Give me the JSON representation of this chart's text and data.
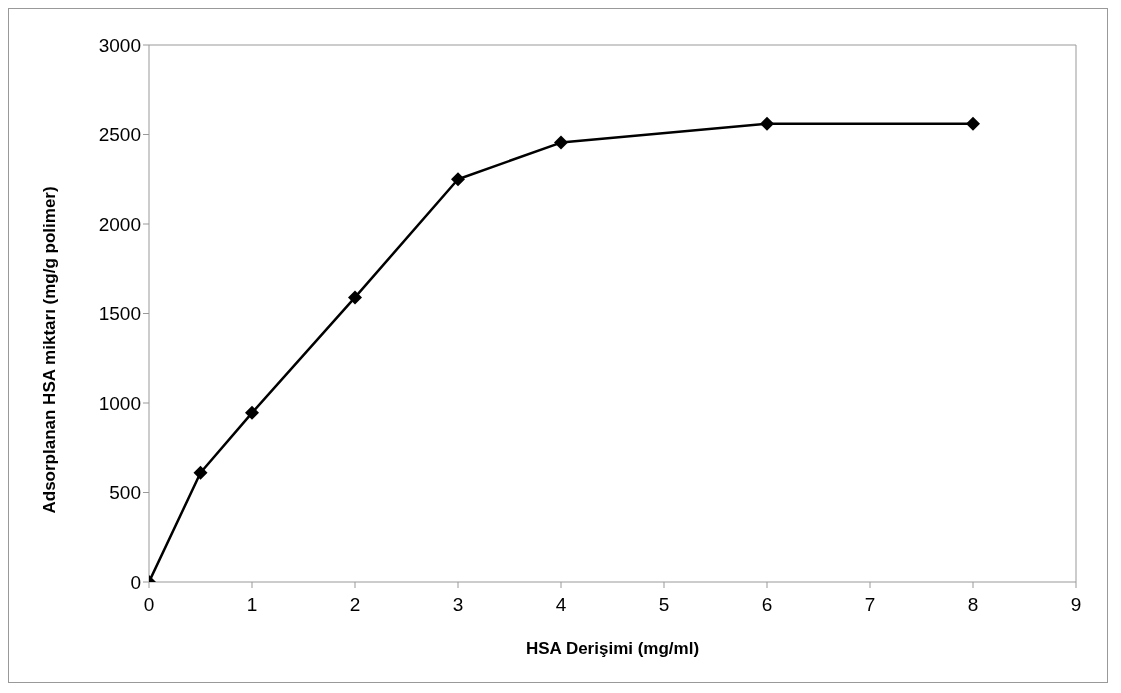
{
  "chart_data": {
    "type": "line",
    "xlabel": "HSA Derişimi (mg/ml)",
    "ylabel": "Adsorplanan HSA miktarı (mg/g polimer)",
    "x": [
      0,
      0.5,
      1,
      2,
      3,
      4,
      6,
      8
    ],
    "series": [
      {
        "color": "#000000",
        "values": [
          0,
          610,
          945,
          1590,
          2250,
          2455,
          2560,
          2560
        ]
      }
    ],
    "xlim": [
      0,
      9
    ],
    "xticks": [
      0,
      1,
      2,
      3,
      4,
      5,
      6,
      7,
      8,
      9
    ],
    "ylim": [
      0,
      3000
    ],
    "yticks": [
      0,
      500,
      1000,
      1500,
      2000,
      2500,
      3000
    ],
    "grid": false,
    "legend": false,
    "marker": "diamond",
    "line_style": "solid"
  }
}
